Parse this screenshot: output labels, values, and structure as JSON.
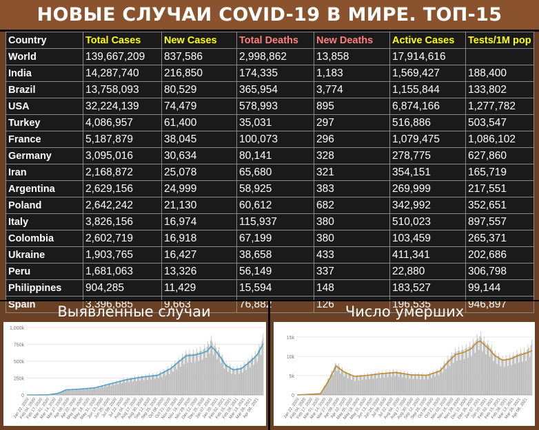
{
  "title": "НОВЫЕ СЛУЧАИ COVID-19 В МИРЕ. ТОП-15",
  "colors": {
    "header_white": "#ffffff",
    "header_yellow": "#ffff00",
    "header_pink": "#ff7f7f",
    "cases_line": "#4aa3c8",
    "deaths_line": "#c08a2a",
    "bars": "#b9b9b9"
  },
  "table": {
    "headers": [
      {
        "label": "Country",
        "color": "#ffffff"
      },
      {
        "label": "Total Cases",
        "color": "#ffff00"
      },
      {
        "label": "New Cases",
        "color": "#ffff00"
      },
      {
        "label": "Total Deaths",
        "color": "#ff7f7f"
      },
      {
        "label": "New Deaths",
        "color": "#ff7f7f"
      },
      {
        "label": "Active Cases",
        "color": "#ffff00"
      },
      {
        "label": "Tests/1M pop",
        "color": "#ffff00"
      }
    ],
    "rows": [
      [
        "World",
        "139,667,209",
        "837,586",
        "2,998,862",
        "13,858",
        "17,914,616",
        ""
      ],
      [
        "India",
        "14,287,740",
        "216,850",
        "174,335",
        "1,183",
        "1,569,427",
        "188,400"
      ],
      [
        "Brazil",
        "13,758,093",
        "80,529",
        "365,954",
        "3,774",
        "1,155,844",
        "133,802"
      ],
      [
        "USA",
        "32,224,139",
        "74,479",
        "578,993",
        "895",
        "6,874,166",
        "1,277,782"
      ],
      [
        "Turkey",
        "4,086,957",
        "61,400",
        "35,031",
        "297",
        "516,886",
        "503,547"
      ],
      [
        "France",
        "5,187,879",
        "38,045",
        "100,073",
        "296",
        "1,079,475",
        "1,086,102"
      ],
      [
        "Germany",
        "3,095,016",
        "30,634",
        "80,141",
        "328",
        "278,775",
        "627,860"
      ],
      [
        "Iran",
        "2,168,872",
        "25,078",
        "65,680",
        "321",
        "354,151",
        "165,719"
      ],
      [
        "Argentina",
        "2,629,156",
        "24,999",
        "58,925",
        "383",
        "269,999",
        "217,551"
      ],
      [
        "Poland",
        "2,642,242",
        "21,130",
        "60,612",
        "682",
        "342,992",
        "352,651"
      ],
      [
        "Italy",
        "3,826,156",
        "16,974",
        "115,937",
        "380",
        "510,023",
        "897,557"
      ],
      [
        "Colombia",
        "2,602,719",
        "16,918",
        "67,199",
        "380",
        "103,459",
        "265,371"
      ],
      [
        "Ukraine",
        "1,903,765",
        "16,427",
        "38,658",
        "433",
        "411,341",
        "202,686"
      ],
      [
        "Peru",
        "1,681,063",
        "13,326",
        "56,149",
        "337",
        "22,880",
        "306,798"
      ],
      [
        "Philippines",
        "904,285",
        "11,429",
        "15,594",
        "148",
        "183,527",
        "99,144"
      ],
      [
        "Spain",
        "3,396,685",
        "9,663",
        "76,882",
        "126",
        "196,535",
        "946,897"
      ]
    ]
  },
  "panels": {
    "cases_title": "Выявленные случаи",
    "deaths_title": "Число умерших"
  },
  "chart_data": [
    {
      "type": "bar",
      "title": "Выявленные случаи",
      "ylim": [
        0,
        1000000
      ],
      "y_ticks": [
        "0",
        "250k",
        "500k",
        "750k",
        "1,000k"
      ],
      "x_tick_labels": [
        "Jan 22, 2020",
        "Feb 04, 2020",
        "Feb 17, 2020",
        "Mar 01, 2020",
        "Mar 14, 2020",
        "Mar 27, 2020",
        "Apr 09, 2020",
        "Apr 22, 2020",
        "May 05, 2020",
        "May 18, 2020",
        "May 31, 2020",
        "Jun 13, 2020",
        "Jun 26, 2020",
        "Jul 09, 2020",
        "Jul 22, 2020",
        "Aug 04, 2020",
        "Aug 17, 2020",
        "Aug 30, 2020",
        "Sep 12, 2020",
        "Sep 25, 2020",
        "Oct 08, 2020",
        "Oct 21, 2020",
        "Nov 03, 2020",
        "Nov 16, 2020",
        "Nov 29, 2020",
        "Dec 12, 2020",
        "Dec 25, 2020",
        "Jan 07, 2021",
        "Jan 20, 2021",
        "Feb 02, 2021",
        "Feb 15, 2021",
        "Feb 28, 2021",
        "Mar 13, 2021",
        "Mar 26, 2021",
        "Apr 08, 2021"
      ],
      "daily_keypoints": [
        [
          0,
          0
        ],
        [
          40,
          2000
        ],
        [
          60,
          30000
        ],
        [
          75,
          80000
        ],
        [
          100,
          90000
        ],
        [
          130,
          110000
        ],
        [
          160,
          170000
        ],
        [
          190,
          230000
        ],
        [
          220,
          270000
        ],
        [
          250,
          300000
        ],
        [
          275,
          400000
        ],
        [
          290,
          500000
        ],
        [
          305,
          600000
        ],
        [
          320,
          600000
        ],
        [
          335,
          650000
        ],
        [
          345,
          700000
        ],
        [
          352,
          800000
        ],
        [
          360,
          700000
        ],
        [
          370,
          600000
        ],
        [
          380,
          450000
        ],
        [
          395,
          380000
        ],
        [
          410,
          400000
        ],
        [
          425,
          500000
        ],
        [
          440,
          600000
        ],
        [
          452,
          830000
        ]
      ],
      "avg_keypoints": [
        [
          0,
          0
        ],
        [
          40,
          1000
        ],
        [
          60,
          25000
        ],
        [
          75,
          75000
        ],
        [
          100,
          85000
        ],
        [
          130,
          105000
        ],
        [
          160,
          165000
        ],
        [
          190,
          225000
        ],
        [
          220,
          265000
        ],
        [
          250,
          290000
        ],
        [
          275,
          390000
        ],
        [
          290,
          490000
        ],
        [
          305,
          580000
        ],
        [
          320,
          590000
        ],
        [
          335,
          620000
        ],
        [
          345,
          650000
        ],
        [
          352,
          720000
        ],
        [
          360,
          660000
        ],
        [
          370,
          560000
        ],
        [
          380,
          440000
        ],
        [
          395,
          370000
        ],
        [
          410,
          390000
        ],
        [
          425,
          480000
        ],
        [
          440,
          590000
        ],
        [
          452,
          760000
        ]
      ]
    },
    {
      "type": "bar",
      "title": "Число умерших",
      "ylim": [
        0,
        17500
      ],
      "y_ticks": [
        "0",
        "5k",
        "10k",
        "15k"
      ],
      "x_tick_labels": [
        "Jan 22, 2020",
        "Feb 04, 2020",
        "Feb 17, 2020",
        "Mar 01, 2020",
        "Mar 14, 2020",
        "Mar 27, 2020",
        "Apr 09, 2020",
        "Apr 22, 2020",
        "May 05, 2020",
        "May 18, 2020",
        "May 31, 2020",
        "Jun 13, 2020",
        "Jun 26, 2020",
        "Jul 09, 2020",
        "Jul 22, 2020",
        "Aug 04, 2020",
        "Aug 17, 2020",
        "Aug 30, 2020",
        "Sep 12, 2020",
        "Sep 25, 2020",
        "Oct 08, 2020",
        "Oct 21, 2020",
        "Nov 03, 2020",
        "Nov 16, 2020",
        "Nov 29, 2020",
        "Dec 12, 2020",
        "Dec 25, 2020",
        "Jan 07, 2021",
        "Jan 20, 2021",
        "Feb 02, 2021",
        "Feb 15, 2021",
        "Feb 28, 2021",
        "Mar 13, 2021",
        "Mar 26, 2021",
        "Apr 08, 2021"
      ],
      "daily_keypoints": [
        [
          0,
          0
        ],
        [
          45,
          500
        ],
        [
          60,
          4000
        ],
        [
          75,
          8000
        ],
        [
          90,
          6000
        ],
        [
          110,
          4500
        ],
        [
          130,
          5000
        ],
        [
          160,
          5500
        ],
        [
          190,
          6000
        ],
        [
          220,
          5200
        ],
        [
          250,
          5000
        ],
        [
          275,
          6500
        ],
        [
          290,
          9000
        ],
        [
          305,
          11000
        ],
        [
          320,
          11500
        ],
        [
          335,
          12500
        ],
        [
          345,
          14000
        ],
        [
          352,
          15000
        ],
        [
          360,
          13500
        ],
        [
          370,
          12500
        ],
        [
          380,
          10500
        ],
        [
          395,
          9000
        ],
        [
          410,
          9500
        ],
        [
          425,
          10500
        ],
        [
          440,
          11000
        ],
        [
          452,
          13000
        ]
      ],
      "avg_keypoints": [
        [
          0,
          0
        ],
        [
          45,
          300
        ],
        [
          60,
          3500
        ],
        [
          75,
          7500
        ],
        [
          90,
          6000
        ],
        [
          110,
          4800
        ],
        [
          130,
          5000
        ],
        [
          160,
          5500
        ],
        [
          190,
          5800
        ],
        [
          220,
          5200
        ],
        [
          250,
          5100
        ],
        [
          275,
          6200
        ],
        [
          290,
          8500
        ],
        [
          305,
          10500
        ],
        [
          320,
          11000
        ],
        [
          335,
          12000
        ],
        [
          345,
          13500
        ],
        [
          352,
          14000
        ],
        [
          360,
          13000
        ],
        [
          370,
          11800
        ],
        [
          380,
          10200
        ],
        [
          395,
          9000
        ],
        [
          410,
          9300
        ],
        [
          425,
          10200
        ],
        [
          440,
          10800
        ],
        [
          452,
          11500
        ]
      ]
    }
  ]
}
